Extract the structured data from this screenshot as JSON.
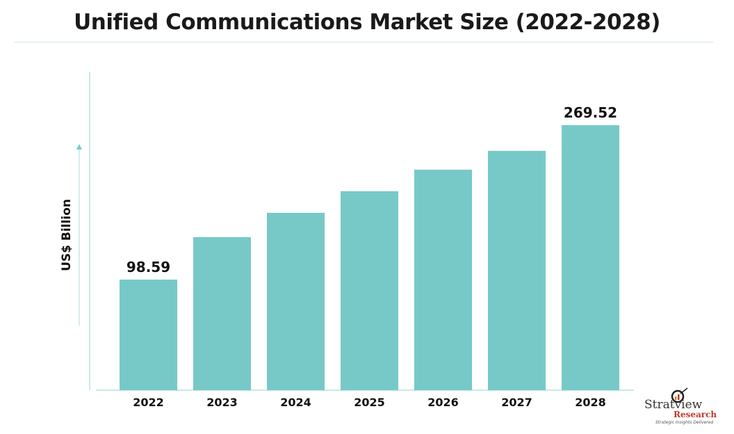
{
  "chart_data": {
    "type": "bar",
    "title": "Unified Communications Market Size (2022-2028)",
    "ylabel": "US$ Billion",
    "xlabel": "",
    "categories": [
      "2022",
      "2023",
      "2024",
      "2025",
      "2026",
      "2027",
      "2028"
    ],
    "values": [
      98.59,
      145.6,
      172.5,
      196.4,
      220.3,
      241.1,
      269.52
    ],
    "data_labels": {
      "2022": "98.59",
      "2028": "269.52"
    },
    "grid": false,
    "bar_color": "#77c9c8",
    "axis_color": "#b9e0df"
  },
  "logo": {
    "name": "Stratview",
    "sub": "Research",
    "tagline": "Strategic Insights Delivered",
    "tm": "™"
  }
}
